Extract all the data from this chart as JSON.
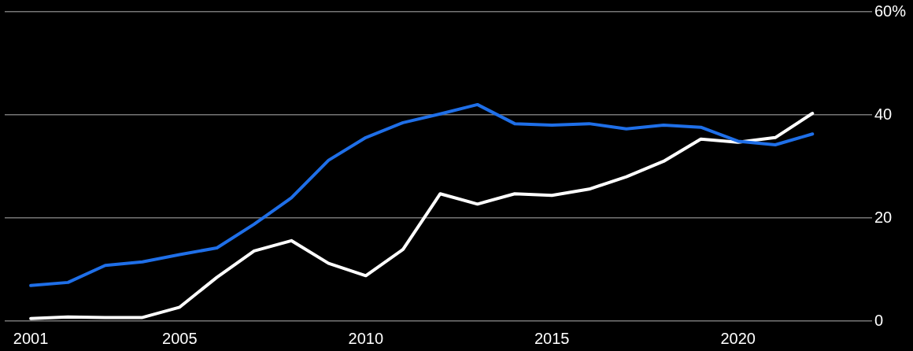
{
  "chart_data": {
    "type": "line",
    "x": [
      2001,
      2002,
      2003,
      2004,
      2005,
      2006,
      2007,
      2008,
      2009,
      2010,
      2011,
      2012,
      2013,
      2014,
      2015,
      2016,
      2017,
      2018,
      2019,
      2020,
      2021,
      2022
    ],
    "series": [
      {
        "color": "#1f6fe8",
        "values": [
          6.9,
          7.5,
          10.8,
          11.5,
          12.9,
          14.2,
          18.8,
          23.9,
          31.2,
          35.6,
          38.5,
          40.2,
          42.0,
          38.3,
          38.0,
          38.3,
          37.3,
          38.0,
          37.6,
          34.9,
          34.2,
          36.3
        ]
      },
      {
        "color": "#ffffff",
        "values": [
          0.5,
          0.8,
          0.7,
          0.7,
          2.7,
          8.5,
          13.6,
          15.6,
          11.2,
          8.8,
          13.9,
          24.7,
          22.7,
          24.7,
          24.4,
          25.6,
          28.0,
          31.0,
          35.3,
          34.7,
          35.6,
          40.3
        ]
      }
    ],
    "xlim": [
      2000.3,
      2023.6
    ],
    "xticks": [
      2001,
      2005,
      2010,
      2015,
      2020
    ],
    "ylim": [
      0,
      60
    ],
    "yticks": [
      0,
      20,
      40,
      {
        "value": 60,
        "label": "60%"
      }
    ],
    "grid": "y",
    "legend": false,
    "marker": "none",
    "line_style": "solid"
  }
}
